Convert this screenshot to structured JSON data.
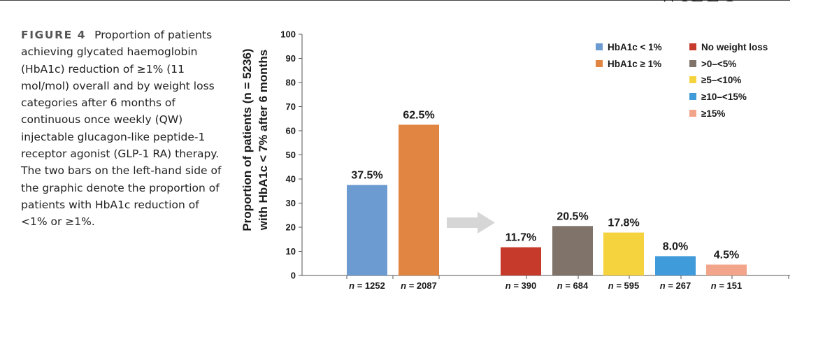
{
  "publisher": "WILEY",
  "caption": {
    "label": "FIGURE 4",
    "text": "Proportion of patients achieving glycated haemoglobin (HbA1c) reduction of ≥1% (11 mol/mol) overall and by weight loss categories after 6 months of continuous once weekly (QW) injectable glucagon-like peptide-1 receptor agonist (GLP-1 RA) therapy. The two bars on the left-hand side of the graphic denote the proportion of patients with HbA1c reduction of <1% or ≥1%."
  },
  "chart_data": {
    "type": "bar",
    "ylabel_line1": "Proportion of patients (n = 5236)",
    "ylabel_line2": "with HbA1c < 7% after 6 months",
    "ylim": [
      0,
      100
    ],
    "yticks": [
      0,
      10,
      20,
      30,
      40,
      50,
      60,
      70,
      80,
      90,
      100
    ],
    "grid": false,
    "legend_position": "top-right",
    "bars": [
      {
        "legend": "HbA1c < 1%",
        "value": 37.5,
        "label": "37.5%",
        "n": "1252",
        "color": "#6b9bd1",
        "group": "overall"
      },
      {
        "legend": "HbA1c ≥ 1%",
        "value": 62.5,
        "label": "62.5%",
        "n": "2087",
        "color": "#e08642",
        "group": "overall"
      },
      {
        "legend": "No weight loss",
        "value": 11.7,
        "label": "11.7%",
        "n": "390",
        "color": "#c63a2c",
        "group": "weight"
      },
      {
        "legend": ">0–<5%",
        "value": 20.5,
        "label": "20.5%",
        "n": "684",
        "color": "#7f736a",
        "group": "weight"
      },
      {
        "legend": "≥5–<10%",
        "value": 17.8,
        "label": "17.8%",
        "n": "595",
        "color": "#f5d33f",
        "group": "weight"
      },
      {
        "legend": "≥10–<15%",
        "value": 8.0,
        "label": "8.0%",
        "n": "267",
        "color": "#3f9bd9",
        "group": "weight"
      },
      {
        "legend": "≥15%",
        "value": 4.5,
        "label": "4.5%",
        "n": "151",
        "color": "#f2a58a",
        "group": "weight"
      }
    ],
    "n_prefix": "n",
    "n_separator": " = ",
    "arrow_color": "#d6d6d6"
  }
}
